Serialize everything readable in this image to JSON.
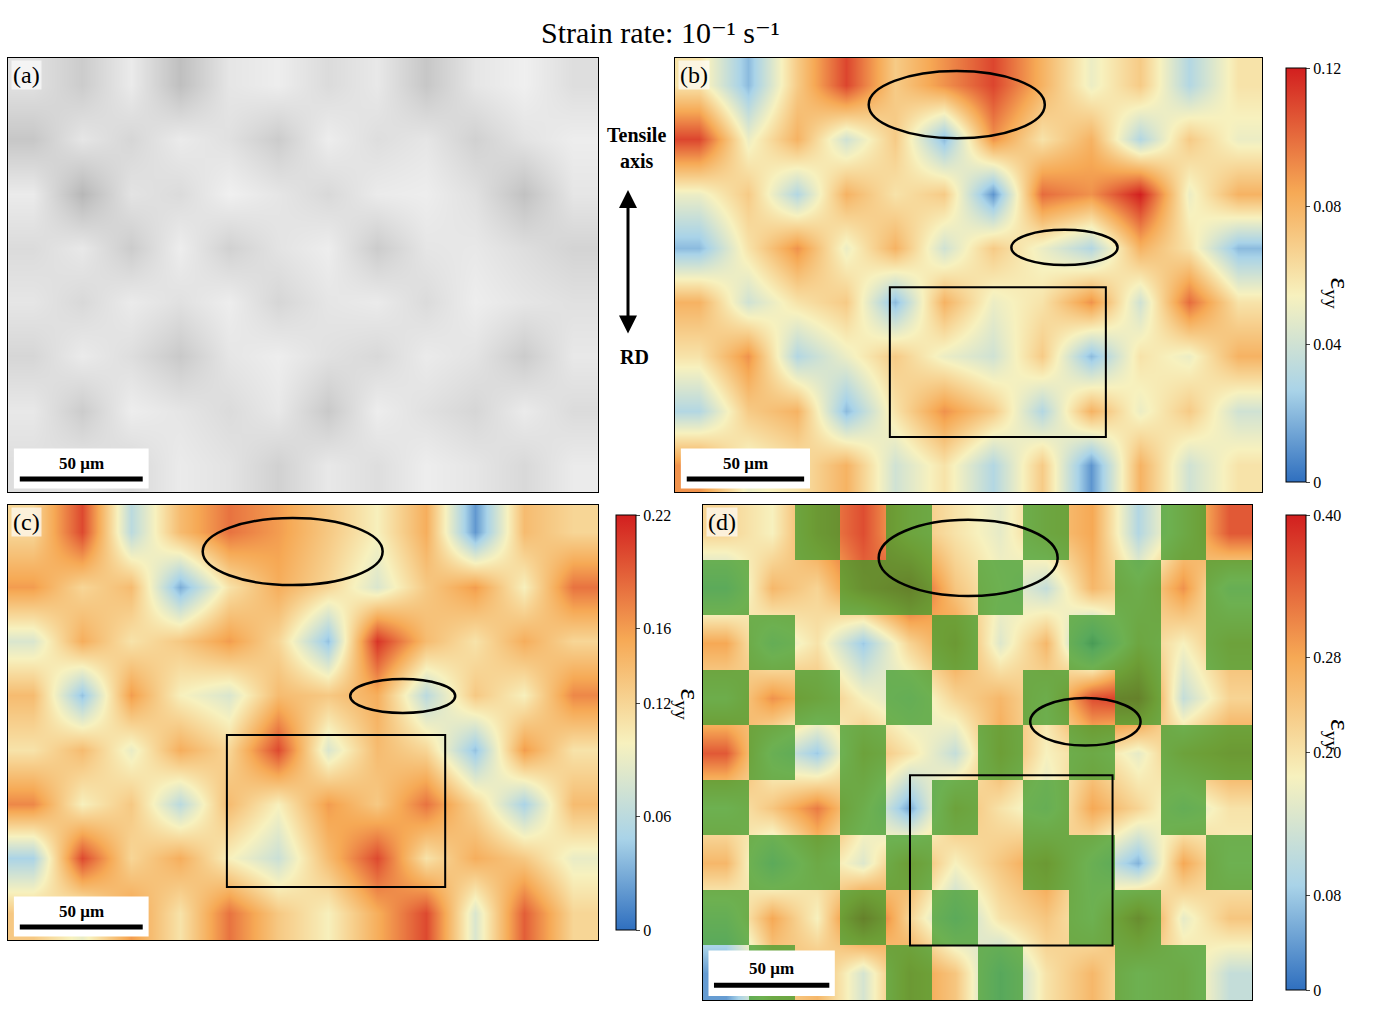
{
  "title": "Strain rate: 10⁻¹ s⁻¹",
  "axis_label": {
    "tensile": "Tensile axis",
    "rd": "RD"
  },
  "chart_data": [
    {
      "type": "heatmap",
      "label": "(a)",
      "color": "gray",
      "tick_labels": false,
      "xlim": [
        0,
        240
      ],
      "ylim": [
        0,
        176
      ],
      "cell_range": [
        0,
        1
      ],
      "scale_bar": {
        "length": 50,
        "label": "50 μm"
      },
      "cells": [
        [
          0.88,
          0.8,
          0.92,
          0.75,
          0.9,
          0.93,
          0.86,
          0.91,
          0.78,
          0.9,
          0.94,
          0.87
        ],
        [
          0.78,
          0.9,
          0.84,
          0.92,
          0.88,
          0.8,
          0.93,
          0.87,
          0.9,
          0.82,
          0.89,
          0.93
        ],
        [
          0.92,
          0.72,
          0.89,
          0.86,
          0.94,
          0.9,
          0.85,
          0.92,
          0.93,
          0.88,
          0.76,
          0.9
        ],
        [
          0.86,
          0.91,
          0.8,
          0.93,
          0.82,
          0.89,
          0.93,
          0.8,
          0.9,
          0.91,
          0.87,
          0.83
        ],
        [
          0.9,
          0.85,
          0.92,
          0.88,
          0.93,
          0.84,
          0.9,
          0.92,
          0.86,
          0.93,
          0.9,
          0.88
        ],
        [
          0.84,
          0.92,
          0.87,
          0.79,
          0.9,
          0.93,
          0.88,
          0.85,
          0.92,
          0.89,
          0.8,
          0.91
        ],
        [
          0.91,
          0.8,
          0.93,
          0.9,
          0.86,
          0.91,
          0.79,
          0.93,
          0.88,
          0.84,
          0.92,
          0.86
        ],
        [
          0.87,
          0.9,
          0.85,
          0.92,
          0.89,
          0.82,
          0.91,
          0.87,
          0.93,
          0.9,
          0.85,
          0.92
        ]
      ]
    },
    {
      "type": "heatmap",
      "label": "(b)",
      "color": "jet",
      "tick_labels": false,
      "xlim": [
        0,
        250
      ],
      "ylim": [
        0,
        183
      ],
      "cell_range": [
        0,
        0.12
      ],
      "scale_bar": {
        "length": 50,
        "label": "50 μm"
      },
      "colorbar": {
        "ticks": [
          0,
          0.04,
          0.08,
          0.12
        ],
        "title": {
          "text": "ε",
          "subscript": "yy"
        }
      },
      "cells": [
        [
          0.06,
          0.02,
          0.07,
          0.11,
          0.07,
          0.09,
          0.11,
          0.08,
          0.05,
          0.07,
          0.03,
          0.06
        ],
        [
          0.11,
          0.05,
          0.08,
          0.04,
          0.07,
          0.02,
          0.09,
          0.06,
          0.08,
          0.03,
          0.07,
          0.05
        ],
        [
          0.05,
          0.07,
          0.03,
          0.08,
          0.06,
          0.07,
          0.01,
          0.1,
          0.09,
          0.12,
          0.05,
          0.08
        ],
        [
          0.02,
          0.06,
          0.09,
          0.05,
          0.08,
          0.04,
          0.07,
          0.05,
          0.03,
          0.08,
          0.06,
          0.02
        ],
        [
          0.08,
          0.04,
          0.06,
          0.07,
          0.02,
          0.08,
          0.05,
          0.06,
          0.09,
          0.04,
          0.1,
          0.06
        ],
        [
          0.06,
          0.09,
          0.03,
          0.05,
          0.07,
          0.05,
          0.04,
          0.07,
          0.02,
          0.06,
          0.05,
          0.08
        ],
        [
          0.03,
          0.07,
          0.08,
          0.02,
          0.06,
          0.09,
          0.07,
          0.03,
          0.08,
          0.05,
          0.07,
          0.04
        ],
        [
          0.09,
          0.05,
          0.06,
          0.08,
          0.04,
          0.06,
          0.03,
          0.07,
          0.01,
          0.08,
          0.04,
          0.06
        ]
      ]
    },
    {
      "type": "heatmap",
      "label": "(c)",
      "color": "jet",
      "tick_labels": false,
      "xlim": [
        0,
        240
      ],
      "ylim": [
        0,
        177
      ],
      "cell_range": [
        0,
        0.22
      ],
      "scale_bar": {
        "length": 50,
        "label": "50 μm"
      },
      "colorbar": {
        "ticks": [
          0,
          0.06,
          0.12,
          0.16,
          0.22
        ],
        "title": {
          "text": "ε",
          "subscript": "yy"
        }
      },
      "cells": [
        [
          0.12,
          0.2,
          0.06,
          0.14,
          0.18,
          0.16,
          0.13,
          0.1,
          0.15,
          0.02,
          0.14,
          0.12
        ],
        [
          0.16,
          0.12,
          0.14,
          0.03,
          0.11,
          0.15,
          0.12,
          0.08,
          0.13,
          0.16,
          0.1,
          0.18
        ],
        [
          0.08,
          0.15,
          0.11,
          0.13,
          0.16,
          0.12,
          0.04,
          0.21,
          0.14,
          0.11,
          0.15,
          0.12
        ],
        [
          0.14,
          0.04,
          0.16,
          0.1,
          0.08,
          0.14,
          0.13,
          0.15,
          0.06,
          0.13,
          0.1,
          0.17
        ],
        [
          0.11,
          0.14,
          0.09,
          0.15,
          0.12,
          0.2,
          0.08,
          0.14,
          0.12,
          0.04,
          0.16,
          0.11
        ],
        [
          0.17,
          0.1,
          0.13,
          0.06,
          0.14,
          0.1,
          0.16,
          0.13,
          0.18,
          0.12,
          0.05,
          0.14
        ],
        [
          0.05,
          0.2,
          0.12,
          0.15,
          0.1,
          0.07,
          0.14,
          0.2,
          0.11,
          0.15,
          0.13,
          0.09
        ],
        [
          0.13,
          0.09,
          0.16,
          0.11,
          0.18,
          0.13,
          0.1,
          0.15,
          0.2,
          0.08,
          0.19,
          0.12
        ]
      ]
    },
    {
      "type": "heatmap",
      "label": "(d)",
      "color": "jet",
      "tick_labels": false,
      "xlim": [
        0,
        238
      ],
      "ylim": [
        0,
        215
      ],
      "cell_range": [
        0,
        0.4
      ],
      "scale_bar": {
        "length": 50,
        "label": "50 μm"
      },
      "colorbar": {
        "ticks": [
          0,
          0.08,
          {
            "value": 0.2,
            "label": "0.20"
          },
          0.28,
          {
            "value": 0.4,
            "label": "0.40"
          }
        ],
        "title": {
          "text": "ε",
          "subscript": "yy"
        }
      },
      "cells": [
        [
          0.22,
          0.18,
          0.3,
          0.36,
          0.25,
          0.2,
          0.16,
          0.24,
          0.28,
          0.1,
          0.22,
          0.35
        ],
        [
          0.1,
          0.26,
          0.22,
          0.33,
          0.38,
          0.24,
          0.18,
          0.12,
          0.26,
          0.2,
          0.3,
          0.15
        ],
        [
          0.28,
          0.14,
          0.2,
          0.08,
          0.22,
          0.3,
          0.15,
          0.26,
          0.04,
          0.24,
          0.18,
          0.26
        ],
        [
          0.2,
          0.3,
          0.25,
          0.18,
          0.14,
          0.22,
          0.26,
          0.2,
          0.36,
          0.38,
          0.12,
          0.22
        ],
        [
          0.35,
          0.16,
          0.08,
          0.26,
          0.2,
          0.12,
          0.28,
          0.18,
          0.22,
          0.16,
          0.26,
          0.3
        ],
        [
          0.18,
          0.24,
          0.32,
          0.2,
          0.05,
          0.26,
          0.2,
          0.15,
          0.28,
          0.22,
          0.14,
          0.2
        ],
        [
          0.26,
          0.1,
          0.22,
          0.15,
          0.28,
          0.18,
          0.24,
          0.3,
          0.16,
          0.06,
          0.28,
          0.18
        ],
        [
          0.14,
          0.28,
          0.18,
          0.38,
          0.22,
          0.1,
          0.2,
          0.24,
          0.18,
          0.34,
          0.16,
          0.24
        ],
        [
          0.04,
          0.22,
          0.26,
          0.14,
          0.3,
          0.24,
          0.08,
          0.2,
          0.26,
          0.18,
          0.22,
          0.12
        ]
      ],
      "overlay": {
        "color": "#3f9b2c",
        "cells": [
          [
            0,
            0,
            1,
            0,
            1,
            0,
            0,
            1,
            0,
            0,
            1,
            0
          ],
          [
            1,
            0,
            0,
            1,
            1,
            0,
            1,
            0,
            0,
            1,
            0,
            1
          ],
          [
            0,
            1,
            0,
            0,
            0,
            1,
            0,
            0,
            1,
            1,
            0,
            1
          ],
          [
            1,
            0,
            1,
            0,
            1,
            0,
            0,
            1,
            0,
            1,
            0,
            0
          ],
          [
            0,
            1,
            0,
            1,
            0,
            0,
            1,
            0,
            1,
            0,
            1,
            1
          ],
          [
            1,
            0,
            0,
            1,
            0,
            1,
            0,
            1,
            0,
            0,
            1,
            0
          ],
          [
            0,
            1,
            1,
            0,
            1,
            0,
            0,
            1,
            1,
            0,
            0,
            1
          ],
          [
            1,
            0,
            0,
            1,
            0,
            1,
            0,
            0,
            1,
            1,
            0,
            0
          ],
          [
            0,
            1,
            0,
            0,
            1,
            0,
            1,
            0,
            0,
            1,
            1,
            0
          ]
        ]
      }
    }
  ]
}
